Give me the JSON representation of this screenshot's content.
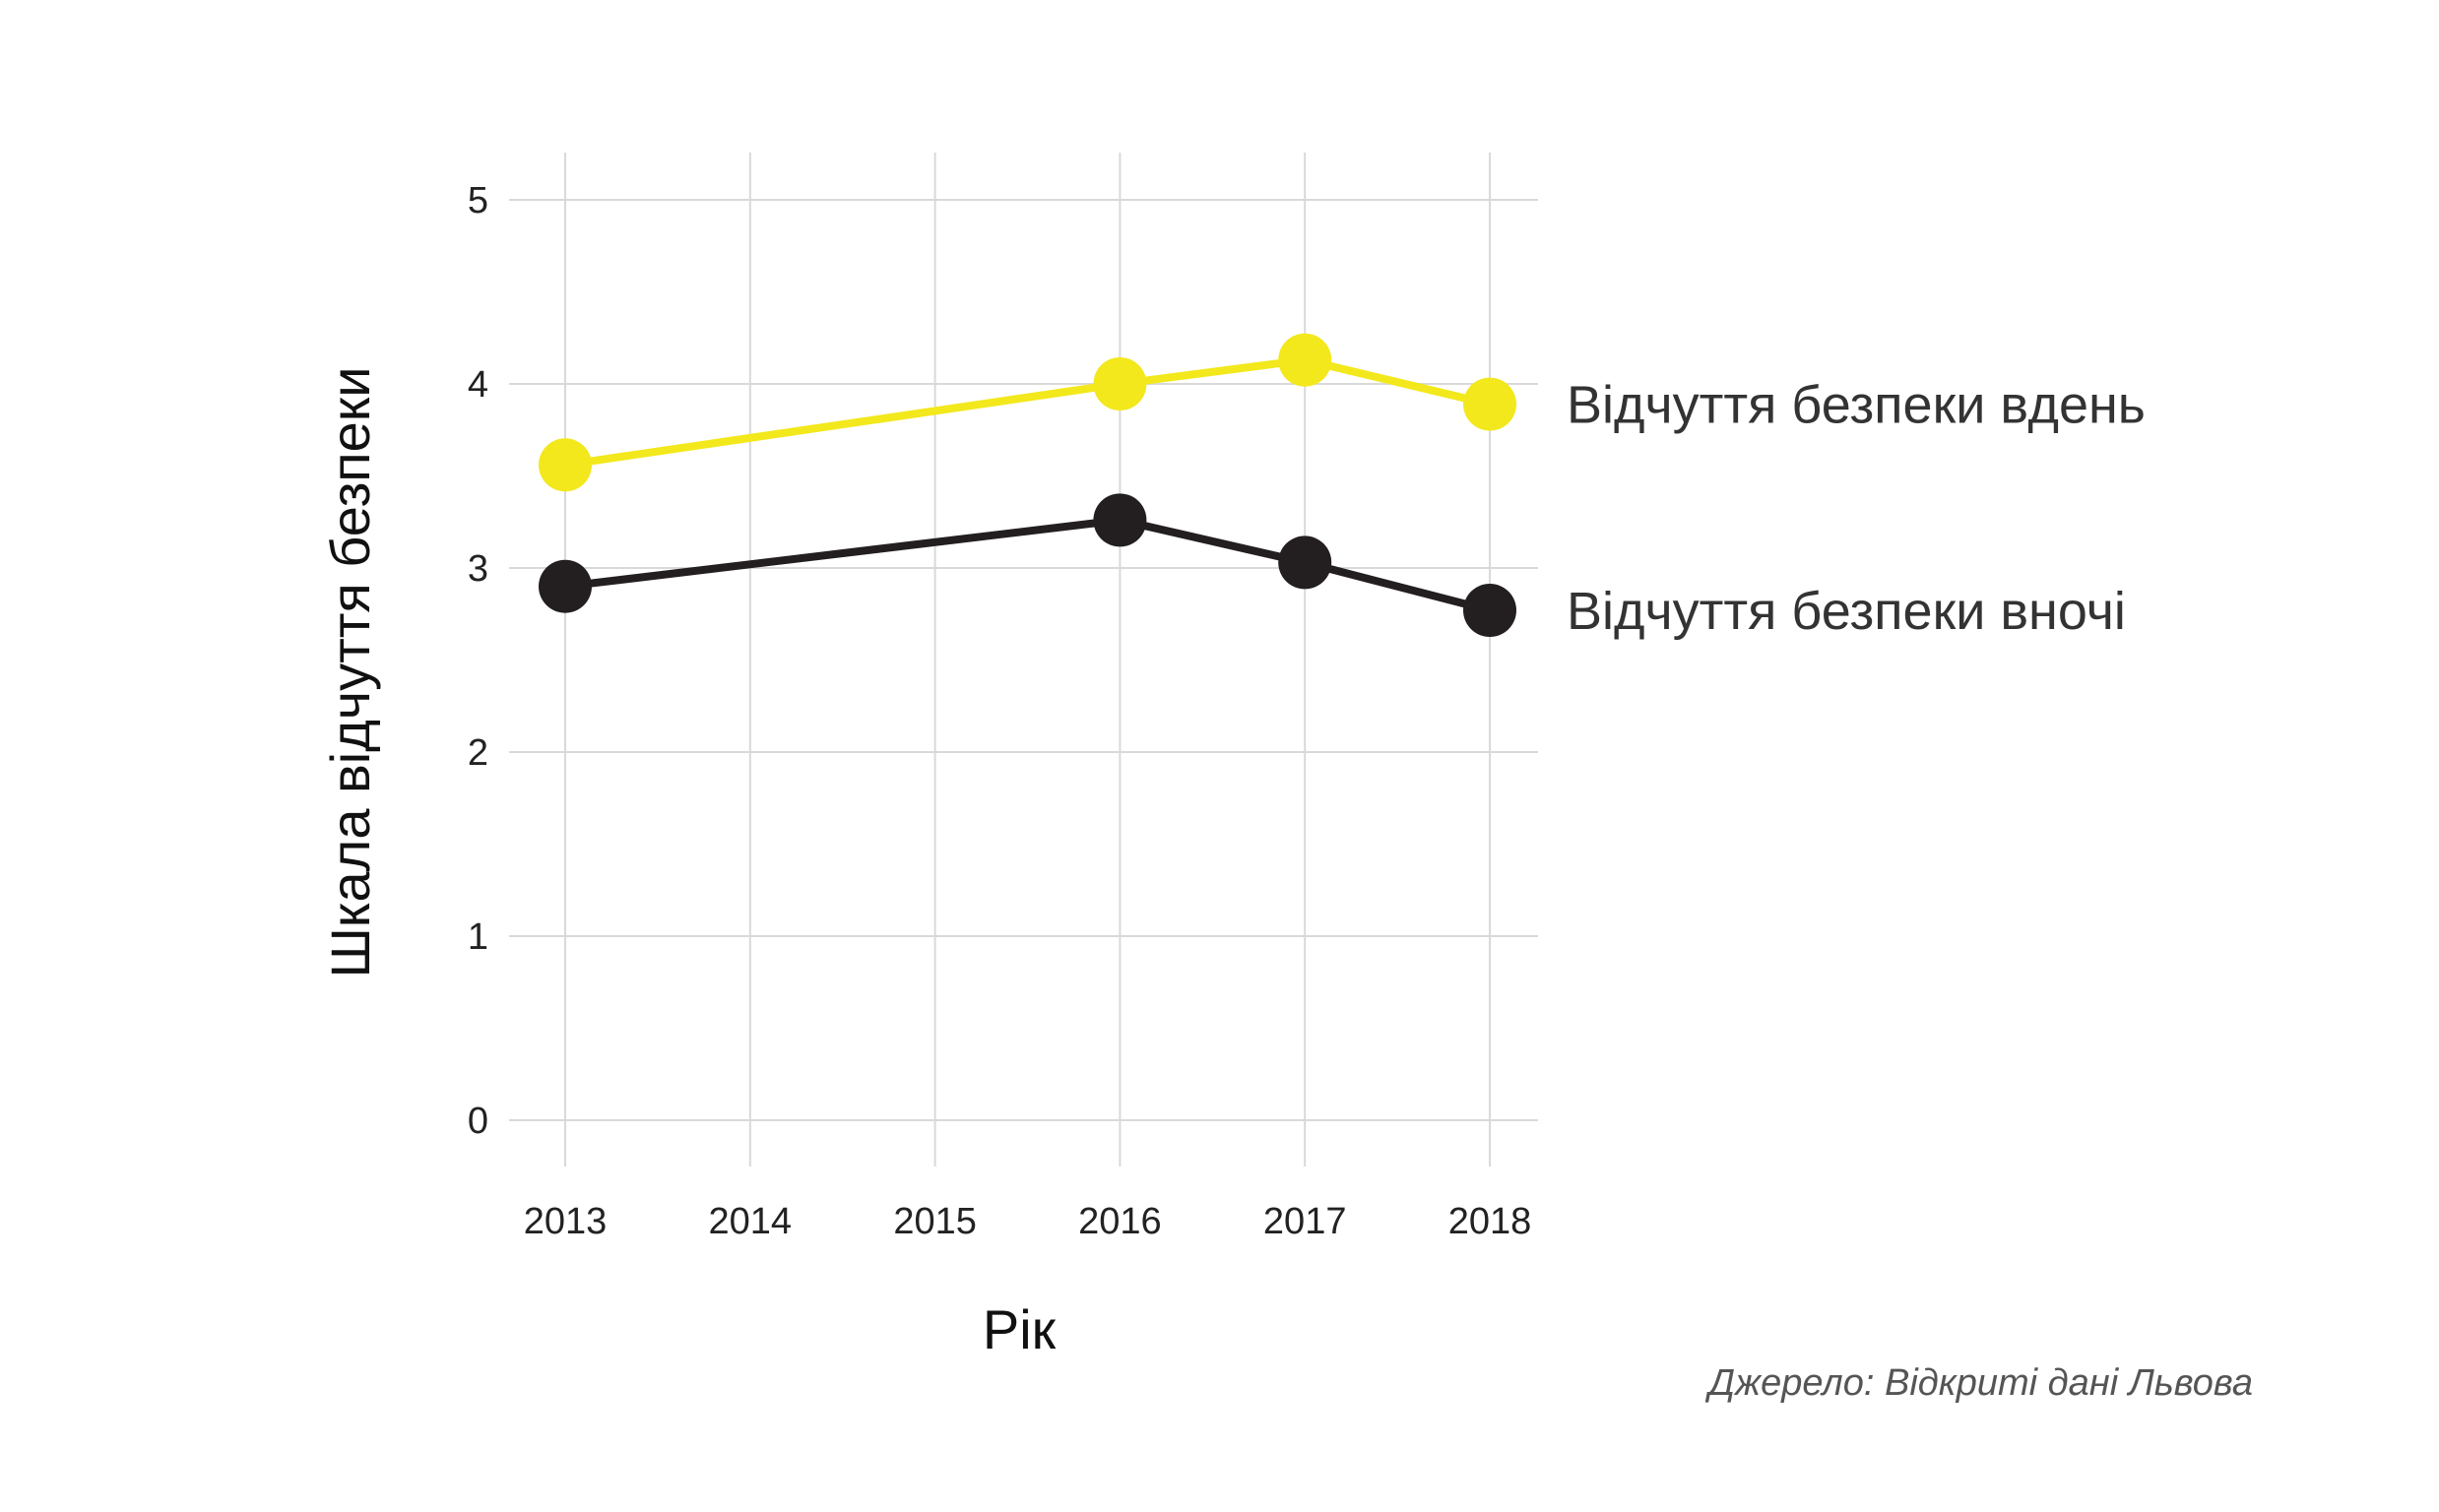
{
  "chart_data": {
    "type": "line",
    "x": [
      2013,
      2016,
      2017,
      2018
    ],
    "x_ticks": [
      "2013",
      "2014",
      "2015",
      "2016",
      "2017",
      "2018"
    ],
    "y_ticks": [
      "0",
      "1",
      "2",
      "3",
      "4",
      "5"
    ],
    "xlim": [
      2013,
      2018
    ],
    "ylim": [
      0,
      5
    ],
    "xlabel": "Рік",
    "ylabel": "Шкала відчуття безпеки",
    "grid": true,
    "legend": "direct labels at line ends",
    "series": [
      {
        "name": "Відчуття безпеки вдень",
        "color": "#f2e81c",
        "values": [
          3.56,
          4.0,
          4.13,
          3.89
        ]
      },
      {
        "name": "Відчуття безпеки вночі",
        "color": "#231f20",
        "values": [
          2.9,
          3.26,
          3.03,
          2.77
        ]
      }
    ]
  },
  "source": "Джерело: Відкриті дані Львова"
}
